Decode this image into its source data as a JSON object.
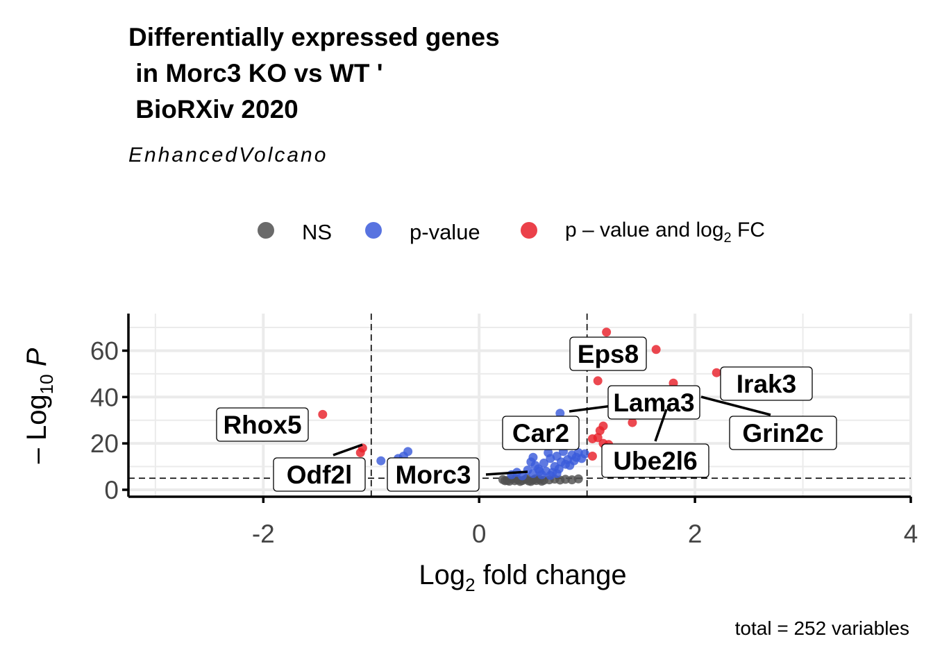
{
  "title": "Differentially expressed genes\n in Morc3 KO vs WT '\n BioRXiv 2020",
  "subtitle": "EnhancedVolcano",
  "caption": "total = 252 variables",
  "chart_data": {
    "type": "scatter",
    "xlabel": "Log2 fold change",
    "ylabel": "-Log10 P",
    "xlim": [
      -3.25,
      4
    ],
    "ylim": [
      -3,
      76
    ],
    "x_ticks": [
      -2,
      0,
      2,
      4
    ],
    "y_ticks": [
      0,
      20,
      40,
      60
    ],
    "grid": true,
    "thresholds": {
      "log2fc": [
        -1,
        1
      ],
      "neg_log10_p": 5
    },
    "legend": {
      "position": "top",
      "entries": [
        {
          "key": "ns",
          "label": "NS",
          "color": "#505050"
        },
        {
          "key": "p",
          "label": "p-value",
          "color": "#3b5bdb"
        },
        {
          "key": "pfc",
          "label": "p – value and log2 FC",
          "label_main": "p – value and log",
          "label_sub": "2",
          "label_after": " FC",
          "color": "#e8202a"
        }
      ]
    },
    "series": [
      {
        "name": "NS",
        "color": "#505050",
        "points": [
          [
            0.22,
            4.4
          ],
          [
            0.26,
            4.0
          ],
          [
            0.3,
            4.6
          ],
          [
            0.33,
            3.9
          ],
          [
            0.36,
            4.3
          ],
          [
            0.4,
            4.0
          ],
          [
            0.43,
            4.5
          ],
          [
            0.46,
            3.8
          ],
          [
            0.5,
            4.2
          ],
          [
            0.53,
            4.0
          ],
          [
            0.56,
            4.4
          ],
          [
            0.6,
            4.1
          ],
          [
            0.28,
            3.7
          ],
          [
            0.38,
            3.6
          ],
          [
            0.48,
            3.6
          ],
          [
            0.58,
            3.7
          ],
          [
            0.34,
            4.8
          ],
          [
            0.44,
            4.9
          ],
          [
            0.52,
            4.7
          ],
          [
            0.24,
            3.9
          ],
          [
            0.65,
            4.3
          ],
          [
            0.7,
            4.6
          ],
          [
            0.75,
            4.2
          ],
          [
            0.8,
            4.5
          ],
          [
            0.86,
            4.3
          ],
          [
            0.92,
            4.7
          ]
        ]
      },
      {
        "name": "p-value",
        "color": "#3b5bdb",
        "points": [
          [
            -0.91,
            12.5
          ],
          [
            -0.75,
            13.5
          ],
          [
            -0.66,
            16.5
          ],
          [
            -0.7,
            14.5
          ],
          [
            0.3,
            6.5
          ],
          [
            0.35,
            7.5
          ],
          [
            0.4,
            6.0
          ],
          [
            0.45,
            8.5
          ],
          [
            0.5,
            7.0
          ],
          [
            0.52,
            10.5
          ],
          [
            0.55,
            9.0
          ],
          [
            0.5,
            14.0
          ],
          [
            0.48,
            12.0
          ],
          [
            0.58,
            6.5
          ],
          [
            0.6,
            11.5
          ],
          [
            0.62,
            8.0
          ],
          [
            0.64,
            16.0
          ],
          [
            0.66,
            13.5
          ],
          [
            0.68,
            7.5
          ],
          [
            0.7,
            10.0
          ],
          [
            0.72,
            14.5
          ],
          [
            0.74,
            9.0
          ],
          [
            0.76,
            12.0
          ],
          [
            0.78,
            16.5
          ],
          [
            0.8,
            11.0
          ],
          [
            0.82,
            13.0
          ],
          [
            0.84,
            10.5
          ],
          [
            0.86,
            15.0
          ],
          [
            0.88,
            12.5
          ],
          [
            0.9,
            14.0
          ],
          [
            0.92,
            16.0
          ],
          [
            0.95,
            13.5
          ],
          [
            0.98,
            15.5
          ],
          [
            0.75,
            33.0
          ],
          [
            0.56,
            8.0
          ],
          [
            0.66,
            6.2
          ],
          [
            0.72,
            7.0
          ]
        ]
      },
      {
        "name": "p – value and log2 FC",
        "color": "#e8202a",
        "points": [
          [
            -1.45,
            32.5
          ],
          [
            -1.08,
            18.0
          ],
          [
            -1.1,
            16.0
          ],
          [
            1.05,
            22.0
          ],
          [
            1.1,
            22.5
          ],
          [
            1.15,
            20.0
          ],
          [
            1.2,
            19.5
          ],
          [
            1.15,
            27.5
          ],
          [
            1.1,
            47.0
          ],
          [
            1.18,
            68.0
          ],
          [
            1.42,
            29.0
          ],
          [
            1.64,
            60.5
          ],
          [
            1.8,
            46.0
          ],
          [
            2.2,
            50.5
          ],
          [
            1.05,
            14.5
          ],
          [
            1.12,
            25.5
          ],
          [
            1.35,
            35.0
          ],
          [
            1.6,
            42.0
          ]
        ]
      }
    ],
    "labels": [
      {
        "gene": "Eps8",
        "x": 1.64,
        "y": 60.5
      },
      {
        "gene": "Irak3",
        "x": 2.2,
        "y": 50.5
      },
      {
        "gene": "Lama3",
        "x": 1.35,
        "y": 38.0
      },
      {
        "gene": "Grin2c",
        "x": 2.7,
        "y": 33.0
      },
      {
        "gene": "Rhox5",
        "x": -1.45,
        "y": 32.5
      },
      {
        "gene": "Car2",
        "x": 0.75,
        "y": 33.0
      },
      {
        "gene": "Ube2l6",
        "x": 1.75,
        "y": 34.0
      },
      {
        "gene": "Odf2l",
        "x": -1.08,
        "y": 18.0
      },
      {
        "gene": "Morc3",
        "x": 0.5,
        "y": 5.5
      }
    ]
  }
}
